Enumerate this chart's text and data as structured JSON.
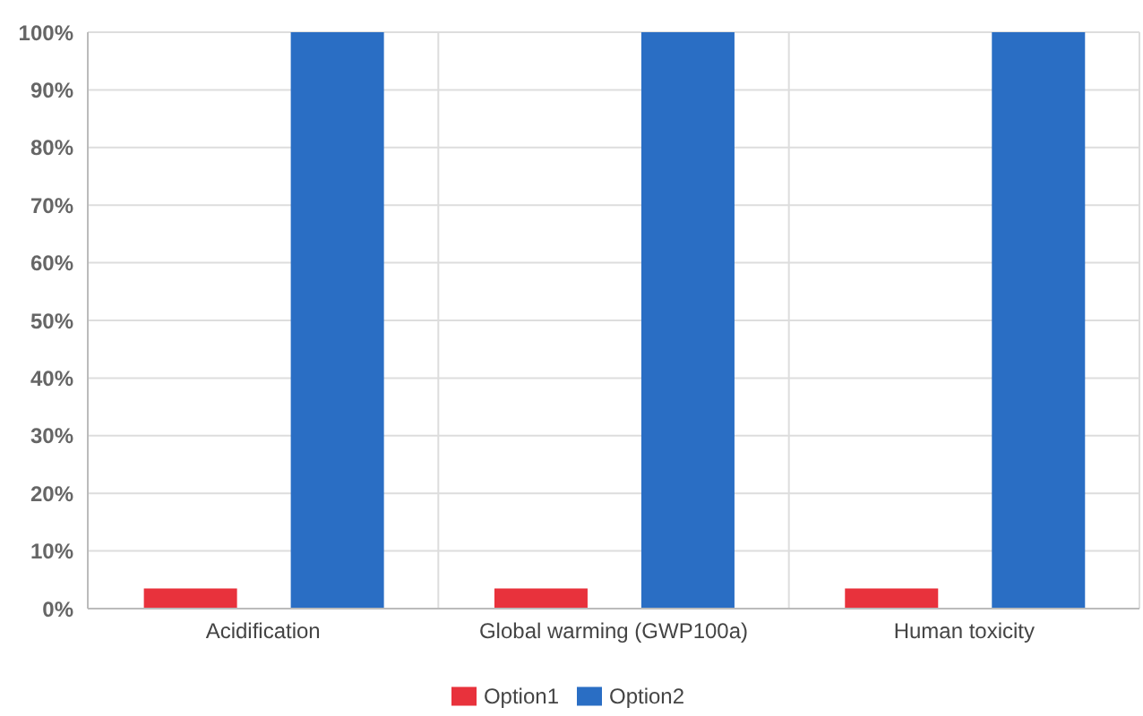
{
  "chart_data": {
    "type": "bar",
    "categories": [
      "Acidification",
      "Global warming (GWP100a)",
      "Human toxicity"
    ],
    "series": [
      {
        "name": "Option1",
        "color": "#e8323c",
        "values": [
          3.5,
          3.5,
          3.5
        ]
      },
      {
        "name": "Option2",
        "color": "#2a6ec4",
        "values": [
          100,
          100,
          100
        ]
      }
    ],
    "ylim": [
      0,
      100
    ],
    "yticks": [
      {
        "value": 0,
        "label": "0%"
      },
      {
        "value": 10,
        "label": "10%"
      },
      {
        "value": 20,
        "label": "20%"
      },
      {
        "value": 30,
        "label": "30%"
      },
      {
        "value": 40,
        "label": "40%"
      },
      {
        "value": 50,
        "label": "50%"
      },
      {
        "value": 60,
        "label": "60%"
      },
      {
        "value": 70,
        "label": "70%"
      },
      {
        "value": 80,
        "label": "80%"
      },
      {
        "value": 90,
        "label": "90%"
      },
      {
        "value": 100,
        "label": "100%"
      }
    ],
    "grid": true,
    "legend": "bottom"
  }
}
